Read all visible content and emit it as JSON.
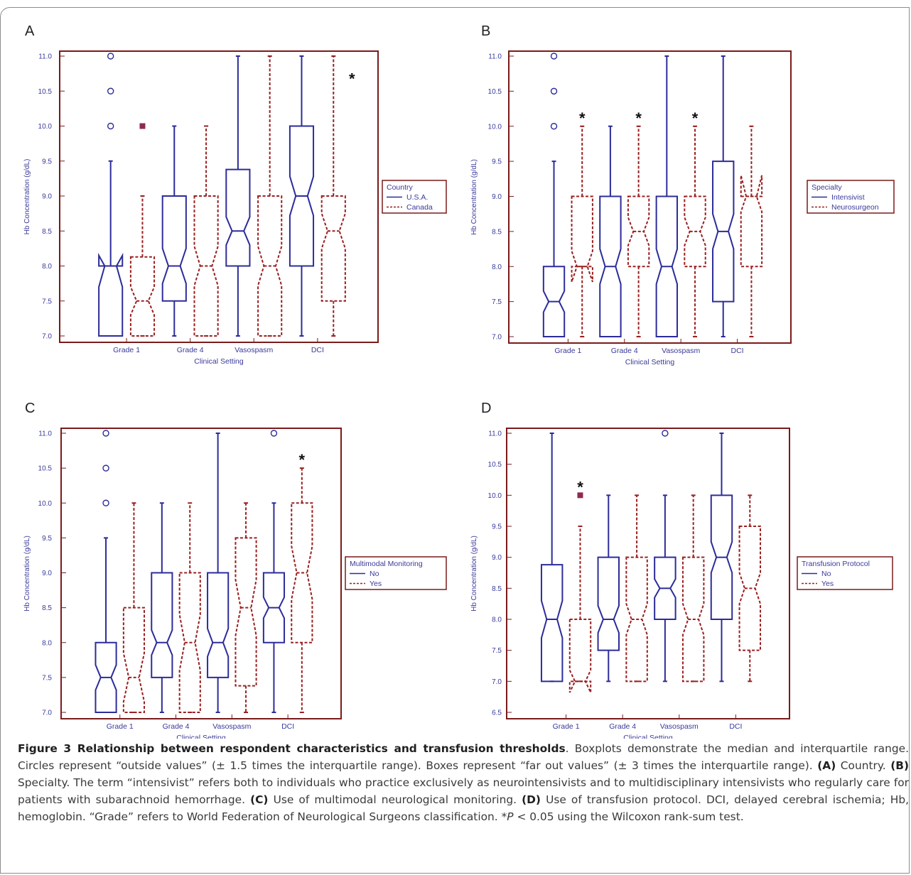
{
  "colors": {
    "frame": "#7a1a1a",
    "groupA": "#2c2c9a",
    "groupB": "#9a2020",
    "far_out": "#8e2a52",
    "axis_text": "#3a3a9a"
  },
  "chart_data": [
    {
      "panel": "A",
      "type": "boxplot",
      "ylabel": "Hb Concentration (g/dL)",
      "xlabel": "Clinical Setting",
      "ylim": [
        7.0,
        11.0
      ],
      "yticks": [
        "7.0",
        "7.5",
        "8.0",
        "8.5",
        "9.0",
        "9.5",
        "10.0",
        "10.5",
        "11.0"
      ],
      "categories": [
        "Grade 1",
        "Grade 4",
        "Vasospasm",
        "DCI"
      ],
      "legend_title": "Country",
      "series": [
        {
          "name": "U.S.A.",
          "boxes": [
            {
              "min": 7.0,
              "q1": 7.0,
              "median": 8.0,
              "q3": 8.0,
              "max": 9.5,
              "notch": [
                7.7,
                8.15
              ],
              "outside": [
                10.0,
                10.5,
                11.0
              ],
              "far_out": []
            },
            {
              "min": 7.0,
              "q1": 7.5,
              "median": 8.0,
              "q3": 9.0,
              "max": 10.0,
              "notch": [
                7.75,
                8.25
              ],
              "outside": [],
              "far_out": []
            },
            {
              "min": 7.0,
              "q1": 8.0,
              "median": 8.5,
              "q3": 9.38,
              "max": 11.0,
              "notch": [
                8.3,
                8.7
              ],
              "outside": [],
              "far_out": []
            },
            {
              "min": 7.0,
              "q1": 8.0,
              "median": 9.0,
              "q3": 10.0,
              "max": 11.0,
              "notch": [
                8.72,
                9.28
              ],
              "outside": [],
              "far_out": []
            }
          ]
        },
        {
          "name": "Canada",
          "boxes": [
            {
              "min": 7.0,
              "q1": 7.0,
              "median": 7.5,
              "q3": 8.13,
              "max": 9.0,
              "notch": [
                7.3,
                7.7
              ],
              "outside": [],
              "far_out": [
                10.0
              ]
            },
            {
              "min": 7.0,
              "q1": 7.0,
              "median": 8.0,
              "q3": 9.0,
              "max": 10.0,
              "notch": [
                7.72,
                8.28
              ],
              "outside": [],
              "far_out": []
            },
            {
              "min": 7.0,
              "q1": 7.0,
              "median": 8.0,
              "q3": 9.0,
              "max": 11.0,
              "notch": [
                7.72,
                8.28
              ],
              "outside": [],
              "far_out": []
            },
            {
              "min": 7.0,
              "q1": 7.5,
              "median": 8.5,
              "q3": 9.0,
              "max": 11.0,
              "notch": [
                8.25,
                8.75
              ],
              "outside": [],
              "far_out": []
            }
          ]
        }
      ],
      "significant": [
        "DCI"
      ]
    },
    {
      "panel": "B",
      "type": "boxplot",
      "ylabel": "Hb Concentration (g/dL)",
      "xlabel": "Clinical Setting",
      "ylim": [
        7.0,
        11.0
      ],
      "yticks": [
        "7.0",
        "7.5",
        "8.0",
        "8.5",
        "9.0",
        "9.5",
        "10.0",
        "10.5",
        "11.0"
      ],
      "categories": [
        "Grade 1",
        "Grade 4",
        "Vasospasm",
        "DCI"
      ],
      "legend_title": "Specialty",
      "series": [
        {
          "name": "Intensivist",
          "boxes": [
            {
              "min": 7.0,
              "q1": 7.0,
              "median": 7.5,
              "q3": 8.0,
              "max": 9.5,
              "notch": [
                7.35,
                7.65
              ],
              "outside": [
                10.0,
                10.5,
                11.0
              ],
              "far_out": []
            },
            {
              "min": 7.0,
              "q1": 7.0,
              "median": 8.0,
              "q3": 9.0,
              "max": 10.0,
              "notch": [
                7.75,
                8.25
              ],
              "outside": [],
              "far_out": []
            },
            {
              "min": 7.0,
              "q1": 7.0,
              "median": 8.0,
              "q3": 9.0,
              "max": 11.0,
              "notch": [
                7.75,
                8.25
              ],
              "outside": [],
              "far_out": []
            },
            {
              "min": 7.0,
              "q1": 7.5,
              "median": 8.5,
              "q3": 9.5,
              "max": 11.0,
              "notch": [
                8.25,
                8.75
              ],
              "outside": [],
              "far_out": []
            }
          ]
        },
        {
          "name": "Neurosurgeon",
          "boxes": [
            {
              "min": 7.0,
              "q1": 8.0,
              "median": 8.0,
              "q3": 9.0,
              "max": 10.0,
              "notch": [
                7.78,
                8.22
              ],
              "outside": [],
              "far_out": []
            },
            {
              "min": 7.0,
              "q1": 8.0,
              "median": 8.5,
              "q3": 9.0,
              "max": 10.0,
              "notch": [
                8.3,
                8.7
              ],
              "outside": [],
              "far_out": []
            },
            {
              "min": 7.0,
              "q1": 8.0,
              "median": 8.5,
              "q3": 9.0,
              "max": 10.0,
              "notch": [
                8.3,
                8.7
              ],
              "outside": [],
              "far_out": []
            },
            {
              "min": 7.0,
              "q1": 8.0,
              "median": 9.0,
              "q3": 9.0,
              "max": 10.0,
              "notch": [
                8.78,
                9.3
              ],
              "outside": [],
              "far_out": []
            }
          ]
        }
      ],
      "significant": [
        "Grade 1",
        "Grade 4",
        "Vasospasm"
      ]
    },
    {
      "panel": "C",
      "type": "boxplot",
      "ylabel": "Hb Concentration (g/dL)",
      "xlabel": "Clinical Setting",
      "ylim": [
        7.0,
        11.0
      ],
      "yticks": [
        "7.0",
        "7.5",
        "8.0",
        "8.5",
        "9.0",
        "9.5",
        "10.0",
        "10.5",
        "11.0"
      ],
      "categories": [
        "Grade 1",
        "Grade 4",
        "Vasospasm",
        "DCI"
      ],
      "legend_title": "Multimodal Monitoring",
      "series": [
        {
          "name": "No",
          "boxes": [
            {
              "min": 7.0,
              "q1": 7.0,
              "median": 7.5,
              "q3": 8.0,
              "max": 9.5,
              "notch": [
                7.32,
                7.68
              ],
              "outside": [
                10.0,
                10.5,
                11.0
              ],
              "far_out": []
            },
            {
              "min": 7.0,
              "q1": 7.5,
              "median": 8.0,
              "q3": 9.0,
              "max": 10.0,
              "notch": [
                7.82,
                8.18
              ],
              "outside": [],
              "far_out": []
            },
            {
              "min": 7.0,
              "q1": 7.5,
              "median": 8.0,
              "q3": 9.0,
              "max": 11.0,
              "notch": [
                7.8,
                8.2
              ],
              "outside": [],
              "far_out": []
            },
            {
              "min": 7.0,
              "q1": 8.0,
              "median": 8.5,
              "q3": 9.0,
              "max": 10.0,
              "notch": [
                8.35,
                8.65
              ],
              "outside": [
                11.0
              ],
              "far_out": []
            }
          ]
        },
        {
          "name": "Yes",
          "boxes": [
            {
              "min": 7.0,
              "q1": 7.0,
              "median": 7.5,
              "q3": 8.5,
              "max": 10.0,
              "notch": [
                7.15,
                7.85
              ],
              "outside": [],
              "far_out": []
            },
            {
              "min": 7.0,
              "q1": 7.0,
              "median": 8.0,
              "q3": 9.0,
              "max": 10.0,
              "notch": [
                7.6,
                8.4
              ],
              "outside": [],
              "far_out": []
            },
            {
              "min": 7.0,
              "q1": 7.38,
              "median": 8.5,
              "q3": 9.5,
              "max": 10.0,
              "notch": [
                8.1,
                8.9
              ],
              "outside": [],
              "far_out": []
            },
            {
              "min": 7.0,
              "q1": 8.0,
              "median": 9.0,
              "q3": 10.0,
              "max": 10.5,
              "notch": [
                8.62,
                9.38
              ],
              "outside": [],
              "far_out": []
            }
          ]
        }
      ],
      "significant": [
        "DCI"
      ]
    },
    {
      "panel": "D",
      "type": "boxplot",
      "ylabel": "Hb Concentration (g/dL)",
      "xlabel": "Clinical Setting",
      "ylim": [
        6.5,
        11.0
      ],
      "yticks": [
        "6.5",
        "7.0",
        "7.5",
        "8.0",
        "8.5",
        "9.0",
        "9.5",
        "10.0",
        "10.5",
        "11.0"
      ],
      "categories": [
        "Grade 1",
        "Grade 4",
        "Vasospasm",
        "DCI"
      ],
      "legend_title": "Transfusion Protocol",
      "series": [
        {
          "name": "No",
          "boxes": [
            {
              "min": 7.0,
              "q1": 7.0,
              "median": 8.0,
              "q3": 8.88,
              "max": 11.0,
              "notch": [
                7.7,
                8.3
              ],
              "outside": [],
              "far_out": []
            },
            {
              "min": 7.0,
              "q1": 7.5,
              "median": 8.0,
              "q3": 9.0,
              "max": 10.0,
              "notch": [
                7.78,
                8.22
              ],
              "outside": [],
              "far_out": []
            },
            {
              "min": 7.0,
              "q1": 8.0,
              "median": 8.5,
              "q3": 9.0,
              "max": 10.0,
              "notch": [
                8.35,
                8.65
              ],
              "outside": [
                11.0
              ],
              "far_out": []
            },
            {
              "min": 7.0,
              "q1": 8.0,
              "median": 9.0,
              "q3": 10.0,
              "max": 11.0,
              "notch": [
                8.75,
                9.25
              ],
              "outside": [],
              "far_out": []
            }
          ]
        },
        {
          "name": "Yes",
          "boxes": [
            {
              "min": 7.0,
              "q1": 7.0,
              "median": 7.0,
              "q3": 8.0,
              "max": 9.5,
              "notch": [
                6.82,
                7.18
              ],
              "outside": [],
              "far_out": [
                10.0
              ]
            },
            {
              "min": 7.0,
              "q1": 7.0,
              "median": 8.0,
              "q3": 9.0,
              "max": 10.0,
              "notch": [
                7.75,
                8.25
              ],
              "outside": [],
              "far_out": []
            },
            {
              "min": 7.0,
              "q1": 7.0,
              "median": 8.0,
              "q3": 9.0,
              "max": 10.0,
              "notch": [
                7.75,
                8.25
              ],
              "outside": [],
              "far_out": []
            },
            {
              "min": 7.0,
              "q1": 7.5,
              "median": 8.5,
              "q3": 9.5,
              "max": 10.0,
              "notch": [
                8.25,
                8.75
              ],
              "outside": [],
              "far_out": []
            }
          ]
        }
      ],
      "significant": [
        "Grade 1"
      ]
    }
  ],
  "significance_mark": "*",
  "caption": {
    "title": "Figure 3 Relationship between respondent characteristics and transfusion thresholds",
    "text1": ". Boxplots demonstrate the median and interquartile range. Circles represent “outside values” (± 1.5 times the interquartile range). Boxes represent “far out values” (± 3 times the interquartile range). ",
    "labelA": "(A)",
    "textA": " Country. ",
    "labelB": "(B)",
    "textB": " Specialty. The term “intensivist” refers both to individuals who practice exclusively as neurointensivists and to multidisciplinary intensivists who regularly care for patients with subarachnoid hemorrhage. ",
    "labelC": "(C)",
    "textC": " Use of multimodal neurological monitoring. ",
    "labelD": "(D)",
    "textD": " Use of transfusion protocol. DCI, delayed cerebral ischemia; Hb, hemoglobin. “Grade” refers to World Federation of Neurological Surgeons classification. *",
    "p_italic": "P",
    "textE": " < 0.05 using the Wilcoxon rank-sum test."
  }
}
